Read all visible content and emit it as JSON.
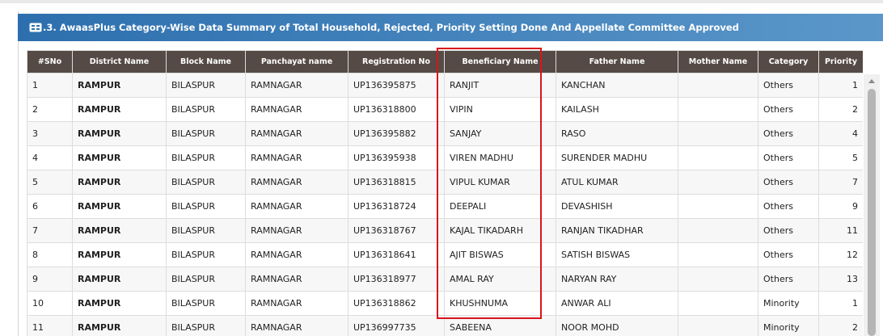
{
  "header": {
    "title": ".3. AwaasPlus Category-Wise Data Summary of Total Household, Rejected, Priority Setting Done And Appellate Committee Approved"
  },
  "table": {
    "columns": [
      "#SNo",
      "District Name",
      "Block Name",
      "Panchayat name",
      "Registration No",
      "Beneficiary Name",
      "Father Name",
      "Mother Name",
      "Category",
      "Priority"
    ],
    "rows": [
      [
        1,
        "RAMPUR",
        "BILASPUR",
        "RAMNAGAR",
        "UP136395875",
        "RANJIT",
        "KANCHAN",
        null,
        "Others",
        1
      ],
      [
        2,
        "RAMPUR",
        "BILASPUR",
        "RAMNAGAR",
        "UP136318800",
        "VIPIN",
        "KAILASH",
        null,
        "Others",
        2
      ],
      [
        3,
        "RAMPUR",
        "BILASPUR",
        "RAMNAGAR",
        "UP136395882",
        "SANJAY",
        "RASO",
        null,
        "Others",
        4
      ],
      [
        4,
        "RAMPUR",
        "BILASPUR",
        "RAMNAGAR",
        "UP136395938",
        "VIREN MADHU",
        "SURENDER MADHU",
        null,
        "Others",
        5
      ],
      [
        5,
        "RAMPUR",
        "BILASPUR",
        "RAMNAGAR",
        "UP136318815",
        "VIPUL KUMAR",
        "ATUL KUMAR",
        null,
        "Others",
        7
      ],
      [
        6,
        "RAMPUR",
        "BILASPUR",
        "RAMNAGAR",
        "UP136318724",
        "DEEPALI",
        "DEVASHISH",
        null,
        "Others",
        9
      ],
      [
        7,
        "RAMPUR",
        "BILASPUR",
        "RAMNAGAR",
        "UP136318767",
        "KAJAL TIKADARH",
        "RANJAN TIKADHAR",
        null,
        "Others",
        11
      ],
      [
        8,
        "RAMPUR",
        "BILASPUR",
        "RAMNAGAR",
        "UP136318641",
        "AJIT BISWAS",
        "SATISH BISWAS",
        null,
        "Others",
        12
      ],
      [
        9,
        "RAMPUR",
        "BILASPUR",
        "RAMNAGAR",
        "UP136318977",
        "AMAL RAY",
        "NARYAN RAY",
        null,
        "Others",
        13
      ],
      [
        10,
        "RAMPUR",
        "BILASPUR",
        "RAMNAGAR",
        "UP136318862",
        "KHUSHNUMA",
        "ANWAR ALI",
        null,
        "Minority",
        1
      ],
      [
        11,
        "RAMPUR",
        "BILASPUR",
        "RAMNAGAR",
        "UP136997735",
        "SABEENA",
        "NOOR MOHD",
        null,
        "Minority",
        2
      ]
    ]
  }
}
